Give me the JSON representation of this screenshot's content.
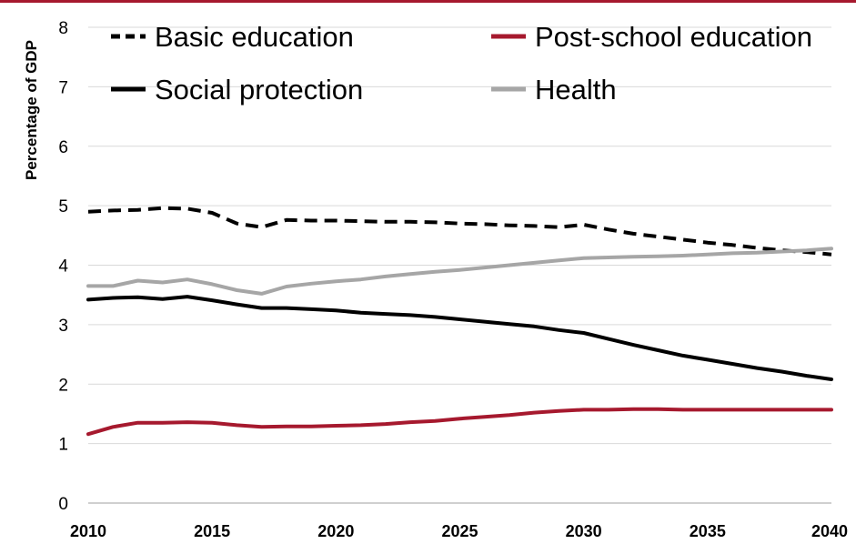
{
  "chart_data": {
    "type": "line",
    "title": "",
    "xlabel": "",
    "ylabel": "Percentage of GDP",
    "xlim": [
      2010,
      2040
    ],
    "ylim": [
      0,
      8
    ],
    "x_ticks": [
      "2010",
      "2015",
      "2020",
      "2025",
      "2030",
      "2035",
      "2040"
    ],
    "y_ticks": [
      "0",
      "1",
      "2",
      "3",
      "4",
      "5",
      "6",
      "7",
      "8"
    ],
    "grid": true,
    "legend_position": "top",
    "x": [
      2010,
      2011,
      2012,
      2013,
      2014,
      2015,
      2016,
      2017,
      2018,
      2019,
      2020,
      2021,
      2022,
      2023,
      2024,
      2025,
      2026,
      2027,
      2028,
      2029,
      2030,
      2031,
      2032,
      2033,
      2034,
      2035,
      2036,
      2037,
      2038,
      2039,
      2040
    ],
    "series": [
      {
        "name": "Basic education",
        "color": "#000000",
        "dash": "dashed",
        "values": [
          4.9,
          4.92,
          4.93,
          4.96,
          4.95,
          4.88,
          4.7,
          4.64,
          4.76,
          4.75,
          4.75,
          4.74,
          4.73,
          4.73,
          4.72,
          4.7,
          4.69,
          4.67,
          4.66,
          4.64,
          4.68,
          4.6,
          4.53,
          4.48,
          4.43,
          4.38,
          4.34,
          4.29,
          4.25,
          4.22,
          4.18
        ]
      },
      {
        "name": "Post-school education",
        "color": "#a6192e",
        "dash": "solid",
        "values": [
          1.16,
          1.28,
          1.35,
          1.35,
          1.36,
          1.35,
          1.31,
          1.28,
          1.29,
          1.29,
          1.3,
          1.31,
          1.33,
          1.36,
          1.38,
          1.42,
          1.45,
          1.48,
          1.52,
          1.55,
          1.57,
          1.57,
          1.58,
          1.58,
          1.57,
          1.57,
          1.57,
          1.57,
          1.57,
          1.57,
          1.57
        ]
      },
      {
        "name": "Social protection",
        "color": "#000000",
        "dash": "solid",
        "values": [
          3.42,
          3.45,
          3.46,
          3.43,
          3.47,
          3.41,
          3.34,
          3.28,
          3.28,
          3.26,
          3.24,
          3.2,
          3.18,
          3.16,
          3.13,
          3.09,
          3.05,
          3.01,
          2.97,
          2.91,
          2.86,
          2.76,
          2.66,
          2.57,
          2.48,
          2.41,
          2.34,
          2.27,
          2.21,
          2.14,
          2.08
        ]
      },
      {
        "name": "Health",
        "color": "#a6a6a6",
        "dash": "solid",
        "values": [
          3.65,
          3.65,
          3.74,
          3.71,
          3.76,
          3.68,
          3.58,
          3.52,
          3.64,
          3.69,
          3.73,
          3.76,
          3.81,
          3.85,
          3.89,
          3.92,
          3.96,
          4.0,
          4.04,
          4.08,
          4.12,
          4.13,
          4.14,
          4.15,
          4.16,
          4.18,
          4.2,
          4.21,
          4.23,
          4.25,
          4.28
        ]
      }
    ]
  }
}
